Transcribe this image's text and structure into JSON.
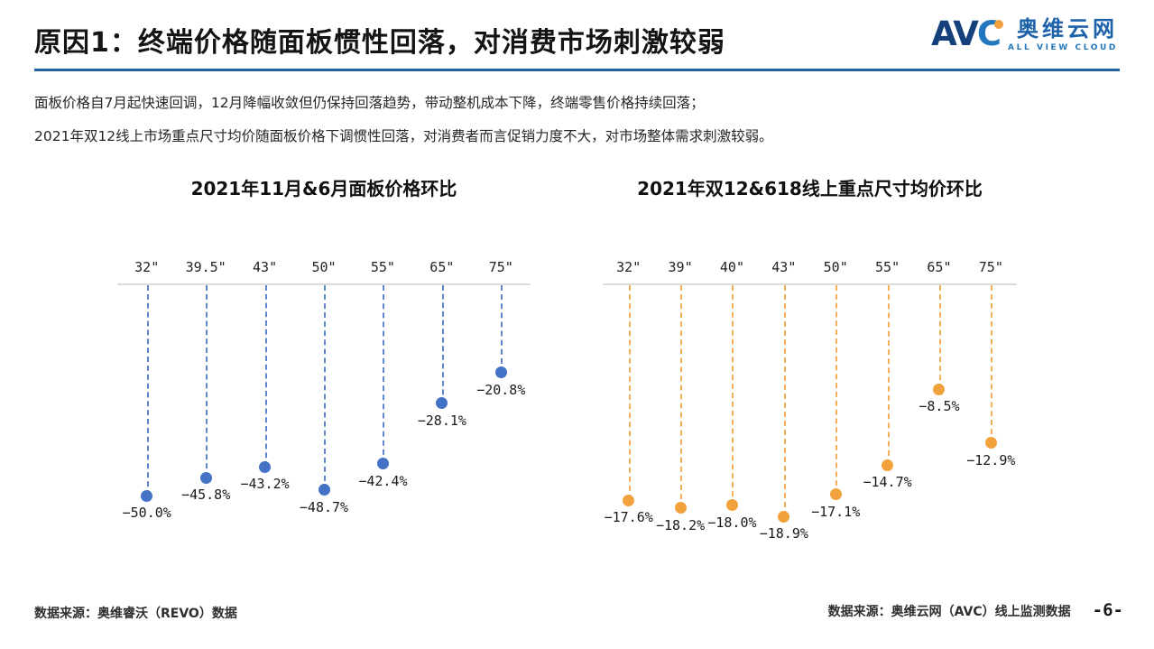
{
  "header": {
    "title": "原因1：终端价格随面板惯性回落，对消费市场刺激较弱",
    "logo": {
      "abbr_av": "AV",
      "abbr_c": "C",
      "cn": "奥维云网",
      "en": "ALL VIEW CLOUD"
    }
  },
  "intro": {
    "line1": "面板价格自7月起快速回调，12月降幅收敛但仍保持回落趋势，带动整机成本下降，终端零售价格持续回落；",
    "line2": "2021年双12线上市场重点尺寸均价随面板价格下调惯性回落，对消费者而言促销力度不大，对市场整体需求刺激较弱。"
  },
  "chart_data": [
    {
      "type": "scatter",
      "style": "hanging-lollipop (dots suspended from top axis by dashed stems)",
      "title": "2021年11月&6月面板价格环比",
      "categories": [
        "32\"",
        "39.5\"",
        "43\"",
        "50\"",
        "55\"",
        "65\"",
        "75\""
      ],
      "values": [
        -50.0,
        -45.8,
        -43.2,
        -48.7,
        -42.4,
        -28.1,
        -20.8
      ],
      "labels": [
        "−50.0%",
        "−45.8%",
        "−43.2%",
        "−48.7%",
        "−42.4%",
        "−28.1%",
        "−20.8%"
      ],
      "xlabel": "",
      "ylabel": "",
      "ylim": [
        -55,
        0
      ],
      "axis_position": "top",
      "grid": false,
      "legend": "none",
      "color": "#4472C4"
    },
    {
      "type": "scatter",
      "style": "hanging-lollipop (dots suspended from top axis by dashed stems)",
      "title": "2021年双12&618线上重点尺寸均价环比",
      "categories": [
        "32\"",
        "39\"",
        "40\"",
        "43\"",
        "50\"",
        "55\"",
        "65\"",
        "75\""
      ],
      "values": [
        -17.6,
        -18.2,
        -18.0,
        -18.9,
        -17.1,
        -14.7,
        -8.5,
        -12.9
      ],
      "labels": [
        "−17.6%",
        "−18.2%",
        "−18.0%",
        "−18.9%",
        "−17.1%",
        "−14.7%",
        "−8.5%",
        "−12.9%"
      ],
      "xlabel": "",
      "ylabel": "",
      "ylim": [
        -20,
        0
      ],
      "axis_position": "top",
      "grid": false,
      "legend": "none",
      "color": "#F2A23C"
    }
  ],
  "footer": {
    "left_source": "数据来源：奥维睿沃（REVO）数据",
    "right_source": "数据来源：奥维云网（AVC）线上监测数据",
    "page": "-6-"
  },
  "colors": {
    "rule_blue": "#1E62A9",
    "series_blue": "#4472C4",
    "series_orange": "#F2A23C",
    "axis_gray": "#DBDBDB"
  }
}
